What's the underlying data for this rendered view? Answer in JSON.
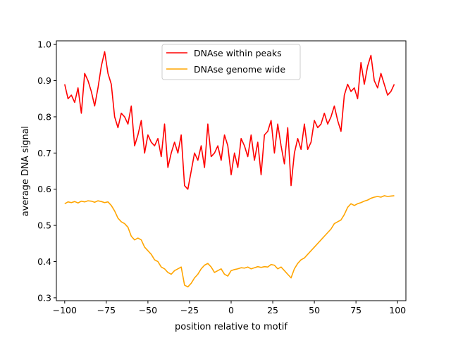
{
  "chart_data": {
    "type": "line",
    "title": "",
    "xlabel": "position relative to motif",
    "ylabel": "average DNA signal",
    "xlim": [
      -105,
      105
    ],
    "ylim": [
      0.292,
      1.01
    ],
    "xticks": [
      -100,
      -75,
      -50,
      -25,
      0,
      25,
      50,
      75,
      100
    ],
    "xtick_labels": [
      "−100",
      "−75",
      "−50",
      "−25",
      "0",
      "25",
      "50",
      "75",
      "100"
    ],
    "yticks": [
      0.3,
      0.4,
      0.5,
      0.6,
      0.7,
      0.8,
      0.9,
      1.0
    ],
    "ytick_labels": [
      "0.3",
      "0.4",
      "0.5",
      "0.6",
      "0.7",
      "0.8",
      "0.9",
      "1.0"
    ],
    "legend": {
      "placement": "upper-center"
    },
    "series": [
      {
        "name": "DNAse within peaks",
        "color": "#ff0000",
        "x": [
          -100,
          -98,
          -96,
          -94,
          -92,
          -90,
          -88,
          -86,
          -84,
          -82,
          -80,
          -78,
          -76,
          -74,
          -72,
          -70,
          -68,
          -66,
          -64,
          -62,
          -60,
          -58,
          -56,
          -54,
          -52,
          -50,
          -48,
          -46,
          -44,
          -42,
          -40,
          -38,
          -36,
          -34,
          -32,
          -30,
          -28,
          -26,
          -24,
          -22,
          -20,
          -18,
          -16,
          -14,
          -12,
          -10,
          -8,
          -6,
          -4,
          -2,
          0,
          2,
          4,
          6,
          8,
          10,
          12,
          14,
          16,
          18,
          20,
          22,
          24,
          26,
          28,
          30,
          32,
          34,
          36,
          38,
          40,
          42,
          44,
          46,
          48,
          50,
          52,
          54,
          56,
          58,
          60,
          62,
          64,
          66,
          68,
          70,
          72,
          74,
          76,
          78,
          80,
          82,
          84,
          86,
          88,
          90,
          92,
          94,
          96,
          98
        ],
        "values": [
          0.89,
          0.85,
          0.86,
          0.84,
          0.88,
          0.81,
          0.92,
          0.9,
          0.87,
          0.83,
          0.88,
          0.94,
          0.98,
          0.92,
          0.89,
          0.8,
          0.77,
          0.81,
          0.8,
          0.78,
          0.83,
          0.72,
          0.75,
          0.79,
          0.7,
          0.75,
          0.73,
          0.72,
          0.74,
          0.69,
          0.78,
          0.66,
          0.7,
          0.73,
          0.7,
          0.75,
          0.61,
          0.6,
          0.65,
          0.7,
          0.68,
          0.72,
          0.66,
          0.78,
          0.69,
          0.7,
          0.72,
          0.68,
          0.75,
          0.72,
          0.64,
          0.7,
          0.66,
          0.74,
          0.72,
          0.69,
          0.75,
          0.68,
          0.73,
          0.64,
          0.75,
          0.76,
          0.79,
          0.7,
          0.78,
          0.72,
          0.67,
          0.77,
          0.61,
          0.7,
          0.74,
          0.71,
          0.78,
          0.71,
          0.73,
          0.79,
          0.77,
          0.78,
          0.81,
          0.78,
          0.8,
          0.83,
          0.79,
          0.76,
          0.86,
          0.89,
          0.87,
          0.88,
          0.85,
          0.95,
          0.89,
          0.94,
          0.97,
          0.9,
          0.88,
          0.92,
          0.89,
          0.86,
          0.87,
          0.89
        ]
      },
      {
        "name": "DNAse genome wide",
        "color": "#ffa500",
        "x": [
          -100,
          -98,
          -96,
          -94,
          -92,
          -90,
          -88,
          -86,
          -84,
          -82,
          -80,
          -78,
          -76,
          -74,
          -72,
          -70,
          -68,
          -66,
          -64,
          -62,
          -60,
          -58,
          -56,
          -54,
          -52,
          -50,
          -48,
          -46,
          -44,
          -42,
          -40,
          -38,
          -36,
          -34,
          -32,
          -30,
          -28,
          -26,
          -24,
          -22,
          -20,
          -18,
          -16,
          -14,
          -12,
          -10,
          -8,
          -6,
          -4,
          -2,
          0,
          2,
          4,
          6,
          8,
          10,
          12,
          14,
          16,
          18,
          20,
          22,
          24,
          26,
          28,
          30,
          32,
          34,
          36,
          38,
          40,
          42,
          44,
          46,
          48,
          50,
          52,
          54,
          56,
          58,
          60,
          62,
          64,
          66,
          68,
          70,
          72,
          74,
          76,
          78,
          80,
          82,
          84,
          86,
          88,
          90,
          92,
          94,
          96,
          98
        ],
        "values": [
          0.56,
          0.565,
          0.563,
          0.566,
          0.562,
          0.567,
          0.565,
          0.568,
          0.567,
          0.564,
          0.568,
          0.566,
          0.563,
          0.565,
          0.555,
          0.54,
          0.52,
          0.51,
          0.505,
          0.495,
          0.47,
          0.46,
          0.465,
          0.46,
          0.44,
          0.43,
          0.42,
          0.405,
          0.4,
          0.385,
          0.38,
          0.37,
          0.365,
          0.375,
          0.38,
          0.385,
          0.335,
          0.33,
          0.34,
          0.355,
          0.365,
          0.38,
          0.39,
          0.395,
          0.385,
          0.37,
          0.375,
          0.38,
          0.365,
          0.36,
          0.375,
          0.378,
          0.38,
          0.383,
          0.382,
          0.385,
          0.38,
          0.383,
          0.386,
          0.384,
          0.386,
          0.385,
          0.392,
          0.39,
          0.38,
          0.385,
          0.375,
          0.365,
          0.355,
          0.38,
          0.395,
          0.405,
          0.41,
          0.42,
          0.43,
          0.44,
          0.45,
          0.46,
          0.47,
          0.48,
          0.49,
          0.505,
          0.51,
          0.515,
          0.53,
          0.55,
          0.56,
          0.555,
          0.56,
          0.563,
          0.567,
          0.57,
          0.575,
          0.578,
          0.58,
          0.578,
          0.582,
          0.58,
          0.581,
          0.582
        ]
      }
    ]
  }
}
